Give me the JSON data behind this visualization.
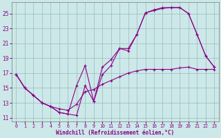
{
  "xlabel": "Windchill (Refroidissement éolien,°C)",
  "bg_color": "#cce8e8",
  "line_color": "#880088",
  "grid_color": "#99bbbb",
  "xlim": [
    -0.5,
    23.5
  ],
  "ylim": [
    10.5,
    26.5
  ],
  "yticks": [
    11,
    13,
    15,
    17,
    19,
    21,
    23,
    25
  ],
  "xticks": [
    0,
    1,
    2,
    3,
    4,
    5,
    6,
    7,
    8,
    9,
    10,
    11,
    12,
    13,
    14,
    15,
    16,
    17,
    18,
    19,
    20,
    21,
    22,
    23
  ],
  "line1_x": [
    0,
    1,
    2,
    3,
    4,
    5,
    6,
    7,
    8,
    9,
    10,
    11,
    12,
    13,
    14,
    15,
    16,
    17,
    18,
    19,
    20,
    21,
    22,
    23
  ],
  "line1_y": [
    16.8,
    15.0,
    14.0,
    13.0,
    12.5,
    11.7,
    11.5,
    11.3,
    15.3,
    13.2,
    16.8,
    18.0,
    20.3,
    20.3,
    22.2,
    25.1,
    25.4,
    25.7,
    25.8,
    25.8,
    25.0,
    22.2,
    19.3,
    17.8
  ],
  "line2_x": [
    0,
    1,
    2,
    3,
    4,
    5,
    6,
    7,
    8,
    9,
    10,
    11,
    12,
    13,
    14,
    15,
    16,
    17,
    18,
    19,
    20,
    21,
    22,
    23
  ],
  "line2_y": [
    16.8,
    15.0,
    14.0,
    13.0,
    12.5,
    11.7,
    11.5,
    15.3,
    18.0,
    13.2,
    17.8,
    18.8,
    20.3,
    20.0,
    22.2,
    25.1,
    25.5,
    25.8,
    25.8,
    25.8,
    25.0,
    22.2,
    19.3,
    17.8
  ],
  "line3_x": [
    0,
    1,
    2,
    3,
    4,
    5,
    6,
    7,
    8,
    9,
    10,
    11,
    12,
    13,
    14,
    15,
    16,
    17,
    18,
    19,
    20,
    21,
    22,
    23
  ],
  "line3_y": [
    16.8,
    15.0,
    14.0,
    13.0,
    12.5,
    12.2,
    12.0,
    12.8,
    14.5,
    14.8,
    15.5,
    16.0,
    16.5,
    17.0,
    17.3,
    17.5,
    17.5,
    17.5,
    17.5,
    17.7,
    17.8,
    17.5,
    17.5,
    17.5
  ]
}
